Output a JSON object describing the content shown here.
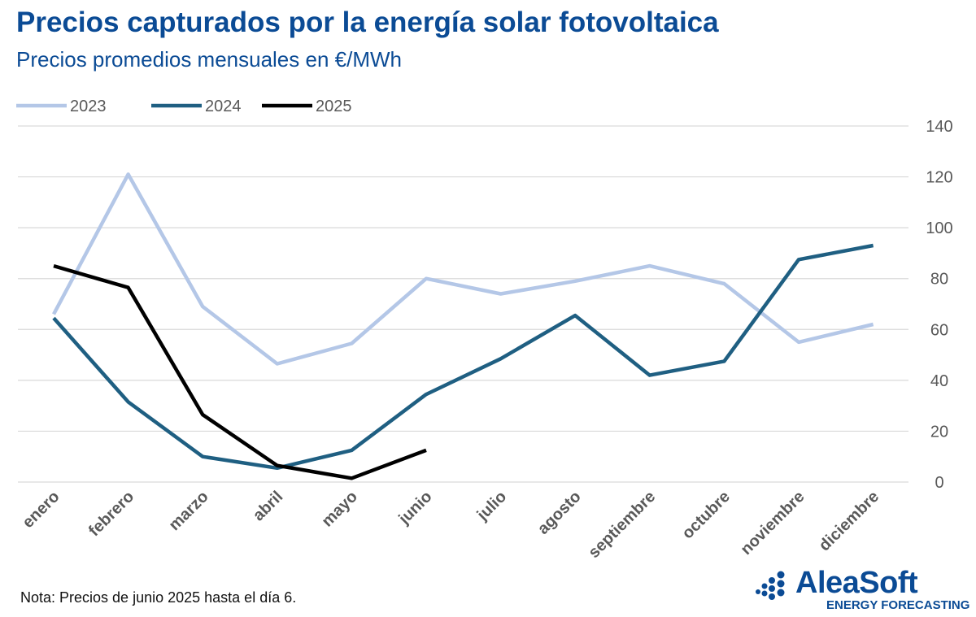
{
  "header": {
    "title": "Precios capturados por la energía solar fotovoltaica",
    "subtitle": "Precios promedios mensuales en €/MWh"
  },
  "footer": {
    "note": "Nota: Precios de junio 2025 hasta el día 6."
  },
  "logo": {
    "name": "AleaSoft",
    "tagline": "ENERGY FORECASTING"
  },
  "colors": {
    "brand": "#0b4b95",
    "grid": "#d9d9d9",
    "axis_text": "#595959"
  },
  "chart_data": {
    "type": "line",
    "categories": [
      "enero",
      "febrero",
      "marzo",
      "abril",
      "mayo",
      "junio",
      "julio",
      "agosto",
      "septiembre",
      "octubre",
      "noviembre",
      "diciembre"
    ],
    "series": [
      {
        "name": "2023",
        "color": "#b4c7e7",
        "values": [
          66,
          121,
          69,
          46.5,
          54.5,
          80,
          74,
          79,
          85,
          78,
          55,
          62
        ]
      },
      {
        "name": "2024",
        "color": "#1f5f82",
        "values": [
          64.5,
          31.5,
          10,
          5.5,
          12.5,
          34.5,
          48.5,
          65.5,
          42,
          47.5,
          87.5,
          93
        ]
      },
      {
        "name": "2025",
        "color": "#000000",
        "values": [
          85,
          76.5,
          26.5,
          6.5,
          1.5,
          12.5,
          null,
          null,
          null,
          null,
          null,
          null
        ]
      }
    ],
    "yaxis": {
      "position": "right",
      "min": 0,
      "max": 140,
      "ticks": [
        0,
        20,
        40,
        60,
        80,
        100,
        120,
        140
      ]
    },
    "grid": true,
    "legend": "top-left"
  }
}
